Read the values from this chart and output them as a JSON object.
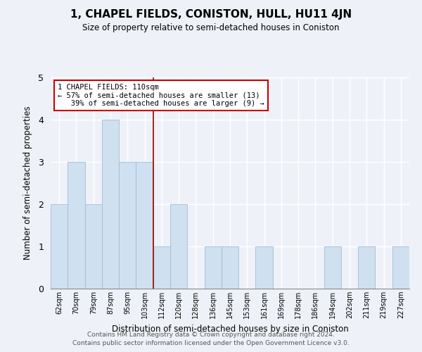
{
  "title": "1, CHAPEL FIELDS, CONISTON, HULL, HU11 4JN",
  "subtitle": "Size of property relative to semi-detached houses in Coniston",
  "xlabel": "Distribution of semi-detached houses by size in Coniston",
  "ylabel": "Number of semi-detached properties",
  "bins": [
    "62sqm",
    "70sqm",
    "79sqm",
    "87sqm",
    "95sqm",
    "103sqm",
    "112sqm",
    "120sqm",
    "128sqm",
    "136sqm",
    "145sqm",
    "153sqm",
    "161sqm",
    "169sqm",
    "178sqm",
    "186sqm",
    "194sqm",
    "202sqm",
    "211sqm",
    "219sqm",
    "227sqm"
  ],
  "counts": [
    2,
    3,
    2,
    4,
    3,
    3,
    1,
    2,
    0,
    1,
    1,
    0,
    1,
    0,
    0,
    0,
    1,
    0,
    1,
    0,
    1
  ],
  "bar_color": "#cfe0f0",
  "bar_edge_color": "#a0bcd8",
  "subject_line_color": "#990000",
  "annotation_title": "1 CHAPEL FIELDS: 110sqm",
  "annotation_line1": "← 57% of semi-detached houses are smaller (13)",
  "annotation_line2": "   39% of semi-detached houses are larger (9) →",
  "annotation_box_color": "#ffffff",
  "annotation_box_edge": "#cc0000",
  "ylim": [
    0,
    5
  ],
  "yticks": [
    0,
    1,
    2,
    3,
    4,
    5
  ],
  "footer1": "Contains HM Land Registry data © Crown copyright and database right 2024.",
  "footer2": "Contains public sector information licensed under the Open Government Licence v3.0.",
  "bg_color": "#eef2f8"
}
